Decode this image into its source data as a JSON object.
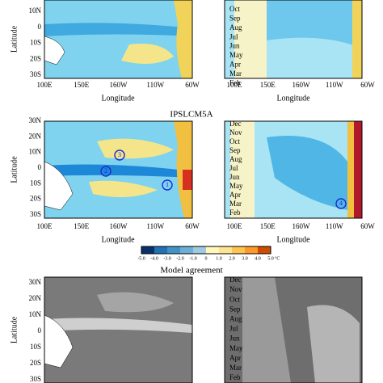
{
  "top": {
    "ylabel": "Latitude",
    "xlabel": "Longitude",
    "left_y": [
      "10N",
      "0",
      "10S",
      "20S",
      "30S"
    ],
    "right_y": [
      "Oct",
      "Sep",
      "Aug",
      "Jul",
      "Jun",
      "May",
      "Apr",
      "Mar",
      "Feb"
    ],
    "x_left": [
      "100E",
      "150E",
      "160W",
      "110W",
      "60W"
    ],
    "x_right": [
      "100E",
      "150E",
      "160W",
      "110W",
      "60W"
    ]
  },
  "middle": {
    "title": "IPSLCM5A",
    "ylabel": "Latitude",
    "xlabel": "Longitude",
    "left_y": [
      "30N",
      "20N",
      "10N",
      "0",
      "10S",
      "20S",
      "30S"
    ],
    "right_y": [
      "Dec",
      "Nov",
      "Oct",
      "Sep",
      "Aug",
      "Jul",
      "Jun",
      "May",
      "Apr",
      "Mar",
      "Feb"
    ],
    "x_left": [
      "100E",
      "150E",
      "160W",
      "110W",
      "60W"
    ],
    "x_right": [
      "100E",
      "150E",
      "160W",
      "110W",
      "60W"
    ],
    "markers": [
      "3",
      "2",
      "1",
      "4"
    ]
  },
  "colorbar": {
    "ticks": [
      "-5.0",
      "-4.0",
      "-3.0",
      "-2.0",
      "-1.0",
      "0",
      "1.0",
      "2.0",
      "3.0",
      "4.0",
      "5.0"
    ],
    "unit": "°C"
  },
  "bottom": {
    "title": "Model agreement",
    "ylabel": "Latitude",
    "left_y": [
      "30N",
      "20N",
      "10N",
      "0",
      "10S",
      "20S",
      "30S"
    ],
    "right_y": [
      "Dec",
      "Nov",
      "Oct",
      "Sep",
      "Aug",
      "Jul",
      "Jun",
      "May",
      "Apr",
      "Mar",
      "Feb"
    ]
  }
}
